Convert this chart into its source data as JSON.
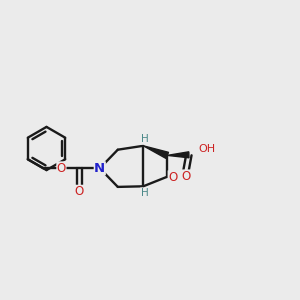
{
  "bg_color": "#ebebeb",
  "bond_color": "#1a1a1a",
  "N_color": "#2222cc",
  "O_color": "#cc2222",
  "H_color": "#4a8888",
  "lw": 1.7,
  "figsize": [
    3.0,
    3.0
  ],
  "dpi": 100,
  "xlim": [
    0,
    10
  ],
  "ylim": [
    0,
    10
  ]
}
